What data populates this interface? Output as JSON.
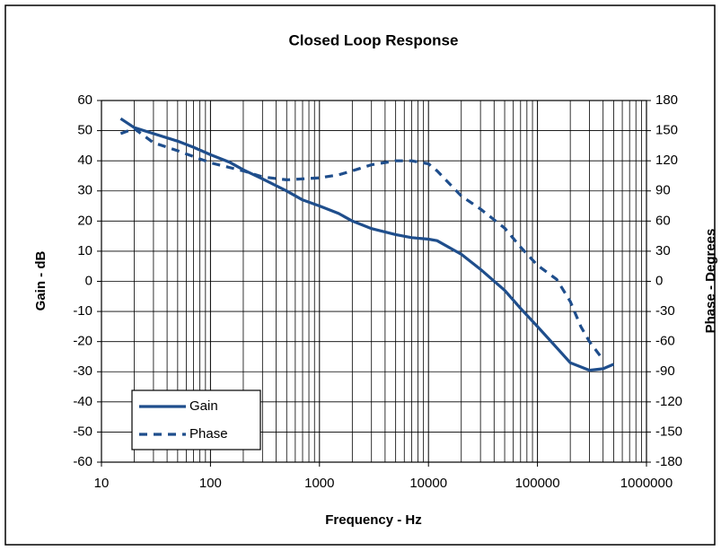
{
  "chart_data": {
    "type": "line",
    "title": "Closed Loop Response",
    "x_label": "Frequency - Hz",
    "y_label": "Gain - dB",
    "y2_label": "Phase - Degrees",
    "xlog": true,
    "xlim": [
      10,
      1000000
    ],
    "xticks": [
      10,
      100,
      1000,
      10000,
      100000,
      1000000
    ],
    "ylim": [
      -60,
      60
    ],
    "yticks": [
      -60,
      -50,
      -40,
      -30,
      -20,
      -10,
      0,
      10,
      20,
      30,
      40,
      50,
      60
    ],
    "y2lim": [
      -180,
      180
    ],
    "y2ticks": [
      -180,
      -150,
      -120,
      -90,
      -60,
      -30,
      0,
      30,
      60,
      90,
      120,
      150,
      180
    ],
    "grid": true,
    "legend": "lower left",
    "series": [
      {
        "name": "Gain",
        "color": "#1f4e8c",
        "dash": false,
        "x": [
          15,
          20,
          30,
          50,
          70,
          100,
          150,
          200,
          300,
          500,
          700,
          1000,
          1500,
          2000,
          3000,
          5000,
          7000,
          10000,
          12000,
          20000,
          30000,
          50000,
          70000,
          100000,
          150000,
          200000,
          300000,
          400000,
          500000
        ],
        "values": [
          54,
          51,
          49,
          46.5,
          44.5,
          42,
          39.5,
          37,
          34,
          30,
          27,
          25,
          22.5,
          20,
          17.5,
          15.5,
          14.5,
          14,
          13.5,
          9,
          4,
          -3,
          -9,
          -15,
          -22,
          -27,
          -29.5,
          -29,
          -27.5
        ]
      },
      {
        "name": "Phase",
        "color": "#1f4e8c",
        "dash": true,
        "axis": "y2",
        "x": [
          15,
          20,
          30,
          50,
          100,
          200,
          300,
          500,
          700,
          1000,
          1500,
          2000,
          3000,
          5000,
          7000,
          10000,
          12000,
          20000,
          30000,
          50000,
          70000,
          100000,
          150000,
          200000,
          250000,
          300000,
          400000
        ],
        "values": [
          147,
          152,
          138,
          130,
          118,
          110,
          104,
          101,
          102,
          103,
          106,
          110,
          116,
          120,
          120,
          117,
          110,
          85,
          72,
          53,
          34,
          16,
          2,
          -20,
          -45,
          -60,
          -78
        ]
      }
    ]
  }
}
